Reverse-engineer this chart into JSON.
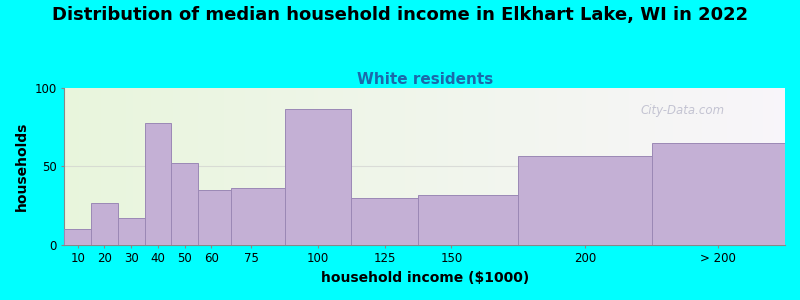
{
  "title": "Distribution of median household income in Elkhart Lake, WI in 2022",
  "subtitle": "White residents",
  "xlabel": "household income ($1000)",
  "ylabel": "households",
  "background_outer": "#00FFFF",
  "bar_color": "#C4B0D5",
  "bar_edge_color": "#9B88B5",
  "ylim": [
    0,
    100
  ],
  "yticks": [
    0,
    50,
    100
  ],
  "tick_labels": [
    "10",
    "20",
    "30",
    "40",
    "50",
    "60",
    "75",
    "100",
    "125",
    "150",
    "200",
    "> 200"
  ],
  "bin_edges": [
    5,
    15,
    25,
    35,
    45,
    55,
    67.5,
    87.5,
    112.5,
    137.5,
    175,
    225,
    275
  ],
  "tick_positions": [
    10,
    20,
    30,
    40,
    50,
    60,
    75,
    100,
    125,
    150,
    200,
    250
  ],
  "values": [
    10,
    27,
    17,
    78,
    52,
    35,
    36,
    87,
    30,
    32,
    57,
    65
  ],
  "title_fontsize": 13,
  "subtitle_fontsize": 11,
  "subtitle_color": "#1B6AAA",
  "axis_label_fontsize": 10,
  "tick_fontsize": 8.5,
  "watermark_text": "City-Data.com",
  "watermark_color": "#BBBBCC",
  "grid_color": "#CCCCCC",
  "grid_alpha": 0.6,
  "xlim": [
    5,
    275
  ]
}
